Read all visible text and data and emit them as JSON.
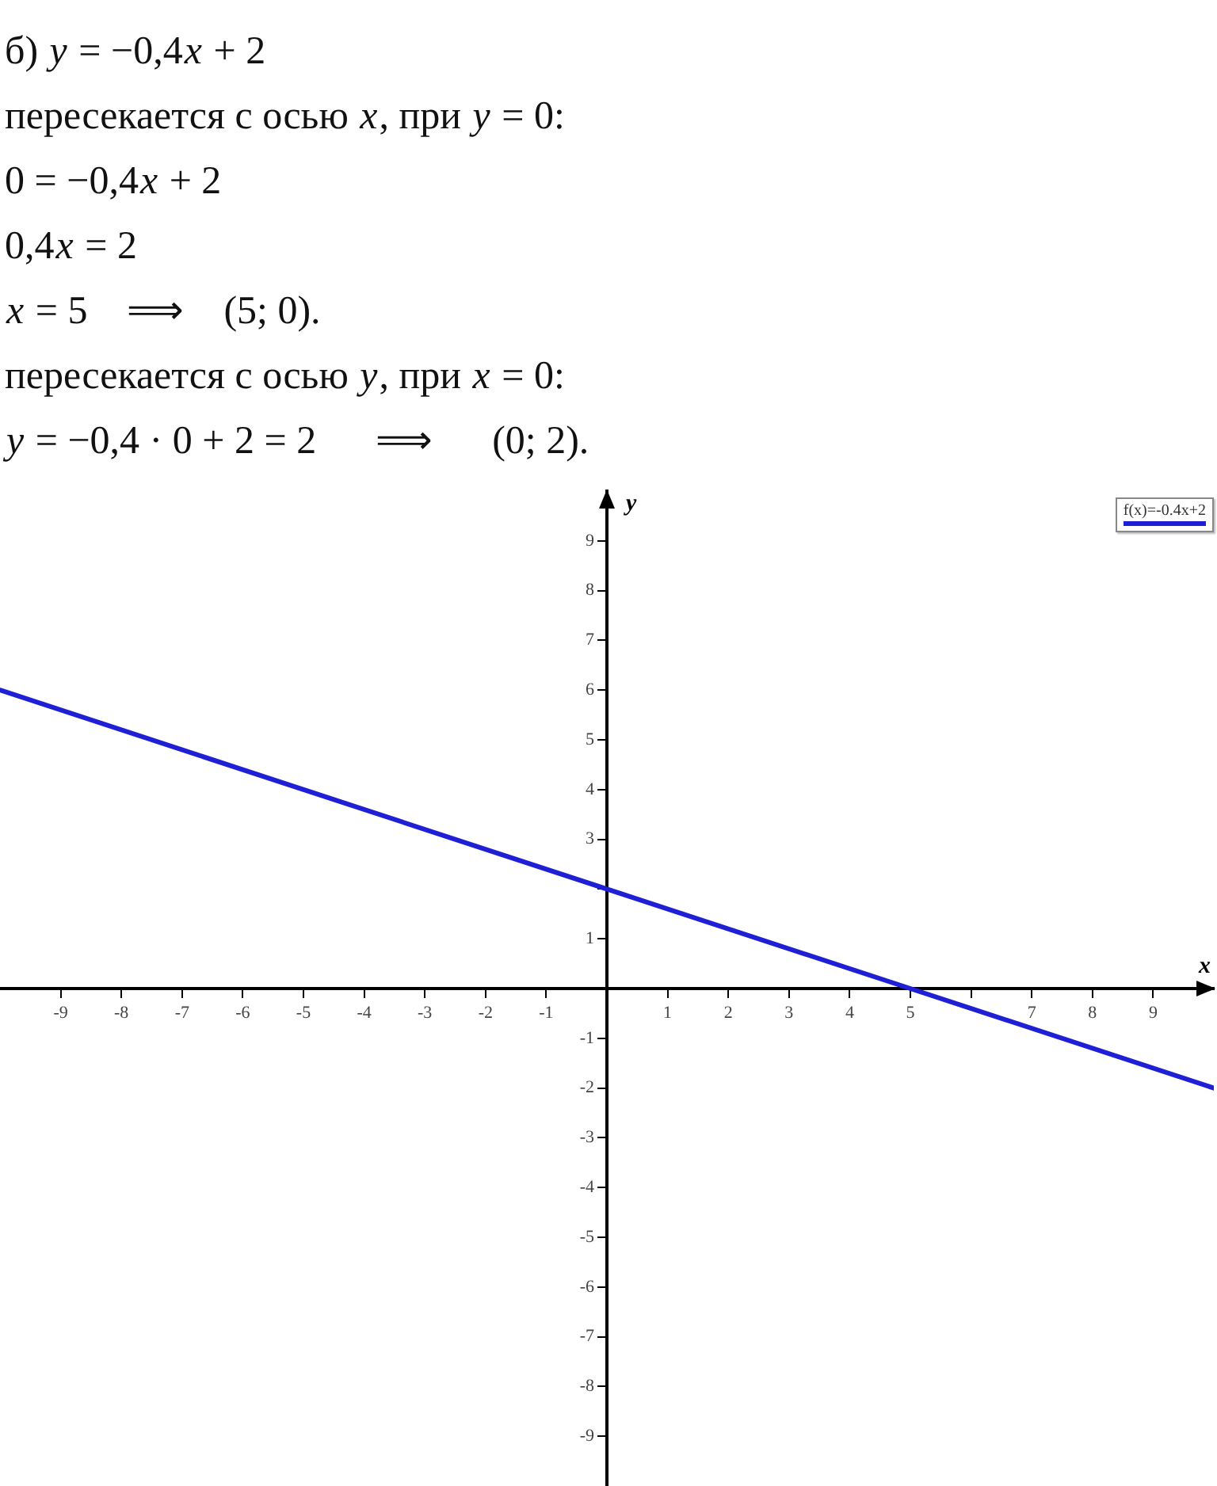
{
  "chart_data": {
    "type": "line",
    "title": "б) y = −0,4x + 2",
    "annotations": [
      "пересекается с осью x, при y = 0:",
      "0 = −0,4x + 2",
      "0,4x = 2",
      "x = 5    ⟹    (5; 0).",
      "пересекается с осью y, при x = 0:",
      "y = −0,4 · 0 + 2 = 2      ⟹      (0; 2)."
    ],
    "xlabel": "x",
    "ylabel": "y",
    "x": [
      -10,
      0,
      5,
      10
    ],
    "series": [
      {
        "name": "f(x)=-0.4x+2",
        "color": "#1f1fd6",
        "values": [
          6,
          2,
          0,
          -2
        ]
      }
    ],
    "xlim": [
      -10,
      10
    ],
    "ylim": [
      -10,
      10
    ],
    "xticks": [
      -9,
      -8,
      -7,
      -6,
      -5,
      -4,
      -3,
      -2,
      -1,
      1,
      2,
      3,
      4,
      5,
      {
        "value": 6,
        "label": null
      },
      7,
      8,
      9
    ],
    "yticks": [
      -9,
      -8,
      -7,
      -6,
      -5,
      -4,
      -3,
      -2,
      -1,
      1,
      {
        "value": 2,
        "label": null
      },
      3,
      4,
      5,
      6,
      7,
      8,
      9
    ],
    "grid": false,
    "legend": "top right",
    "marker": "none",
    "line_style": "solid"
  }
}
